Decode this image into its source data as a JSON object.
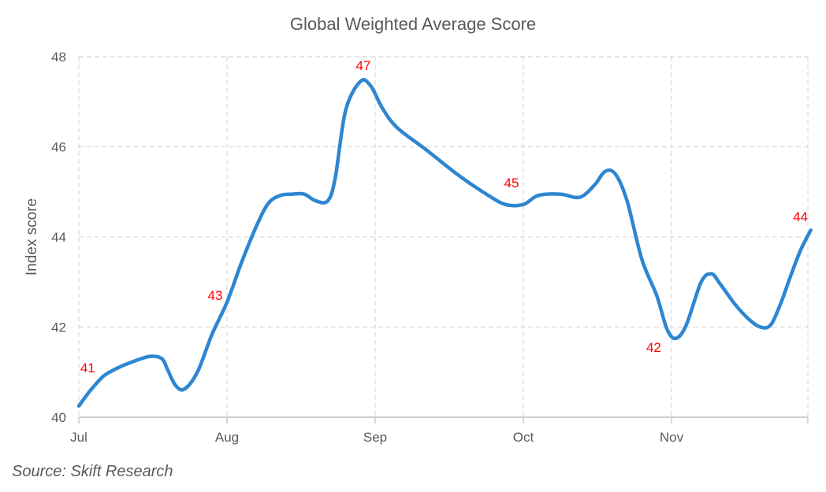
{
  "chart_data": {
    "type": "line",
    "title": "Global Weighted Average Score",
    "xlabel": "",
    "ylabel": "Index score",
    "ylim": [
      40,
      48
    ],
    "yticks": [
      "40",
      "42",
      "44",
      "46",
      "48"
    ],
    "xlim": [
      0,
      4.94
    ],
    "x_tick_positions": [
      0,
      1,
      2,
      3,
      4
    ],
    "x_ticks": [
      "Jul",
      "Aug",
      "Sep",
      "Oct",
      "Nov"
    ],
    "grid": true,
    "series": [
      {
        "x": [
          0,
          0.08,
          0.17,
          0.28,
          0.38,
          0.48,
          0.56,
          0.6,
          0.65,
          0.71,
          0.8,
          0.9,
          1.0,
          1.1,
          1.2,
          1.28,
          1.36,
          1.44,
          1.52,
          1.6,
          1.68,
          1.73,
          1.8,
          1.9,
          1.97,
          2.05,
          2.15,
          2.35,
          2.55,
          2.75,
          2.88,
          3.0,
          3.1,
          3.25,
          3.38,
          3.48,
          3.55,
          3.62,
          3.7,
          3.8,
          3.9,
          3.97,
          4.03,
          4.1,
          4.2,
          4.27,
          4.33,
          4.43,
          4.52,
          4.6,
          4.67,
          4.74,
          4.8,
          4.87,
          4.94
        ],
        "values": [
          40.25,
          40.6,
          40.92,
          41.12,
          41.25,
          41.35,
          41.3,
          41.05,
          40.72,
          40.62,
          41.0,
          41.85,
          42.55,
          43.45,
          44.25,
          44.75,
          44.92,
          44.95,
          44.95,
          44.8,
          44.8,
          45.3,
          46.8,
          47.45,
          47.35,
          46.85,
          46.42,
          45.92,
          45.4,
          44.95,
          44.72,
          44.72,
          44.92,
          44.95,
          44.88,
          45.15,
          45.45,
          45.4,
          44.8,
          43.5,
          42.7,
          41.95,
          41.75,
          42.05,
          43.0,
          43.18,
          42.95,
          42.5,
          42.18,
          42.0,
          42.05,
          42.55,
          43.1,
          43.7,
          44.15
        ]
      }
    ],
    "annotations": [
      {
        "text": "41",
        "x": 0.06,
        "y": 41.0,
        "color": "#ff0000"
      },
      {
        "text": "43",
        "x": 0.92,
        "y": 42.6,
        "color": "#ff0000"
      },
      {
        "text": "47",
        "x": 1.92,
        "y": 47.7,
        "color": "#ff0000"
      },
      {
        "text": "45",
        "x": 2.92,
        "y": 45.1,
        "color": "#ff0000"
      },
      {
        "text": "42",
        "x": 3.88,
        "y": 41.45,
        "color": "#ff0000"
      },
      {
        "text": "44",
        "x": 4.87,
        "y": 44.35,
        "color": "#ff0000"
      }
    ],
    "line_color": "#2e86d1"
  },
  "source": "Source: Skift Research"
}
